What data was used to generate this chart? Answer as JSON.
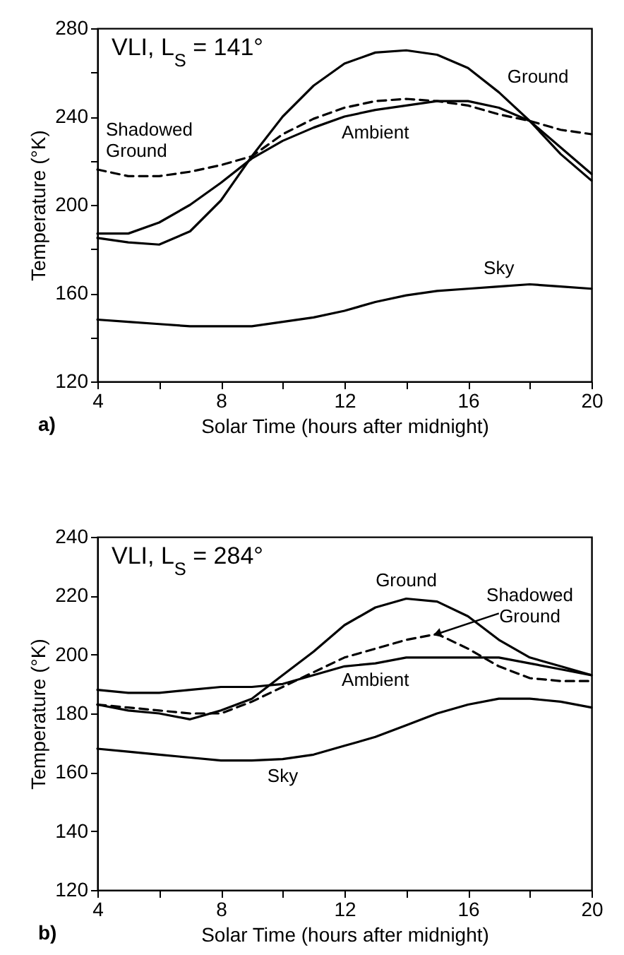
{
  "chart_data": [
    {
      "type": "line",
      "title": "VLI, L$_{S}$ = 141°",
      "xlabel": "Solar Time (hours after midnight)",
      "ylabel": "Temperature (°K)",
      "annotations": [
        "a)"
      ],
      "x": [
        4,
        5,
        6,
        7,
        8,
        9,
        10,
        11,
        12,
        13,
        14,
        15,
        16,
        17,
        18,
        19,
        20
      ],
      "xlim": [
        4,
        20
      ],
      "xticks": [
        4,
        {
          "value": 6,
          "label": null
        },
        8,
        {
          "value": 10,
          "label": null
        },
        12,
        {
          "value": 14,
          "label": null
        },
        16,
        {
          "value": 18,
          "label": null
        },
        20
      ],
      "ylim": [
        120,
        280
      ],
      "yticks": [
        120,
        {
          "value": 140,
          "label": null
        },
        160,
        {
          "value": 180,
          "label": null
        },
        200,
        {
          "value": 220,
          "label": null
        },
        240,
        {
          "value": 260,
          "label": null
        },
        280
      ],
      "series": [
        {
          "name": "Ground",
          "color": "#000000",
          "values": [
            185,
            183,
            182,
            188,
            202,
            222,
            240,
            254,
            264,
            269,
            270,
            268,
            262,
            251,
            238,
            223,
            211
          ]
        },
        {
          "name": "Ambient",
          "color": "#000000",
          "values": [
            187,
            187,
            192,
            200,
            210,
            221,
            229,
            235,
            240,
            243,
            245,
            247,
            247,
            244,
            238,
            226,
            214
          ]
        },
        {
          "name": "Shadowed Ground",
          "color": "#000000",
          "line_style": "dashed",
          "values": [
            216,
            213,
            213,
            215,
            218,
            222,
            232,
            239,
            244,
            247,
            248,
            247,
            245,
            241,
            238,
            234,
            232
          ]
        },
        {
          "name": "Sky",
          "color": "#000000",
          "values": [
            148,
            147,
            146,
            145,
            145,
            145,
            147,
            149,
            152,
            156,
            159,
            161,
            162,
            163,
            164,
            163,
            162
          ]
        }
      ]
    },
    {
      "type": "line",
      "title": "VLI, L$_{S}$ = 284°",
      "xlabel": "Solar Time (hours after midnight)",
      "ylabel": "Temperature (°K)",
      "annotations": [
        "b)"
      ],
      "x": [
        4,
        5,
        6,
        7,
        8,
        9,
        10,
        11,
        12,
        13,
        14,
        15,
        16,
        17,
        18,
        19,
        20
      ],
      "xlim": [
        4,
        20
      ],
      "xticks": [
        4,
        {
          "value": 6,
          "label": null
        },
        8,
        {
          "value": 10,
          "label": null
        },
        12,
        {
          "value": 14,
          "label": null
        },
        16,
        {
          "value": 18,
          "label": null
        },
        20
      ],
      "ylim": [
        120,
        240
      ],
      "yticks": [
        120,
        140,
        160,
        180,
        200,
        220,
        240
      ],
      "series": [
        {
          "name": "Ground",
          "color": "#000000",
          "values": [
            183,
            181,
            180,
            178,
            181,
            185,
            193,
            201,
            210,
            216,
            219,
            218,
            213,
            205,
            199,
            196,
            193
          ]
        },
        {
          "name": "Shadowed Ground",
          "color": "#000000",
          "line_style": "dashed",
          "values": [
            183,
            182,
            181,
            180,
            180,
            184,
            189,
            194,
            199,
            202,
            205,
            207,
            202,
            196,
            192,
            191,
            191
          ]
        },
        {
          "name": "Ambient",
          "color": "#000000",
          "values": [
            188,
            187,
            187,
            188,
            189,
            189,
            190,
            193,
            196,
            197,
            199,
            199,
            199,
            199,
            197,
            195,
            193
          ]
        },
        {
          "name": "Sky",
          "color": "#000000",
          "values": [
            168,
            167,
            166,
            165,
            164,
            164,
            164.5,
            166,
            169,
            172,
            176,
            180,
            183,
            185,
            185,
            184,
            182
          ]
        }
      ]
    }
  ]
}
